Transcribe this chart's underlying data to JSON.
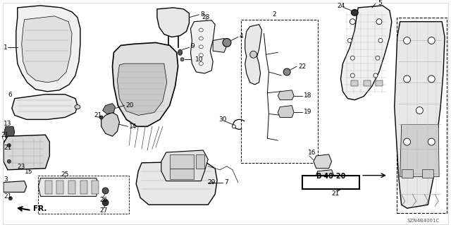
{
  "background_color": "#ffffff",
  "diagram_code": "SZN4B4001C",
  "ref_label": "B-40-20",
  "fr_label": "FR.",
  "fig_width": 6.4,
  "fig_height": 3.19,
  "dpi": 100,
  "line_color": "#000000",
  "gray_fill": "#e8e8e8",
  "dark_gray": "#aaaaaa",
  "mid_gray": "#cccccc"
}
